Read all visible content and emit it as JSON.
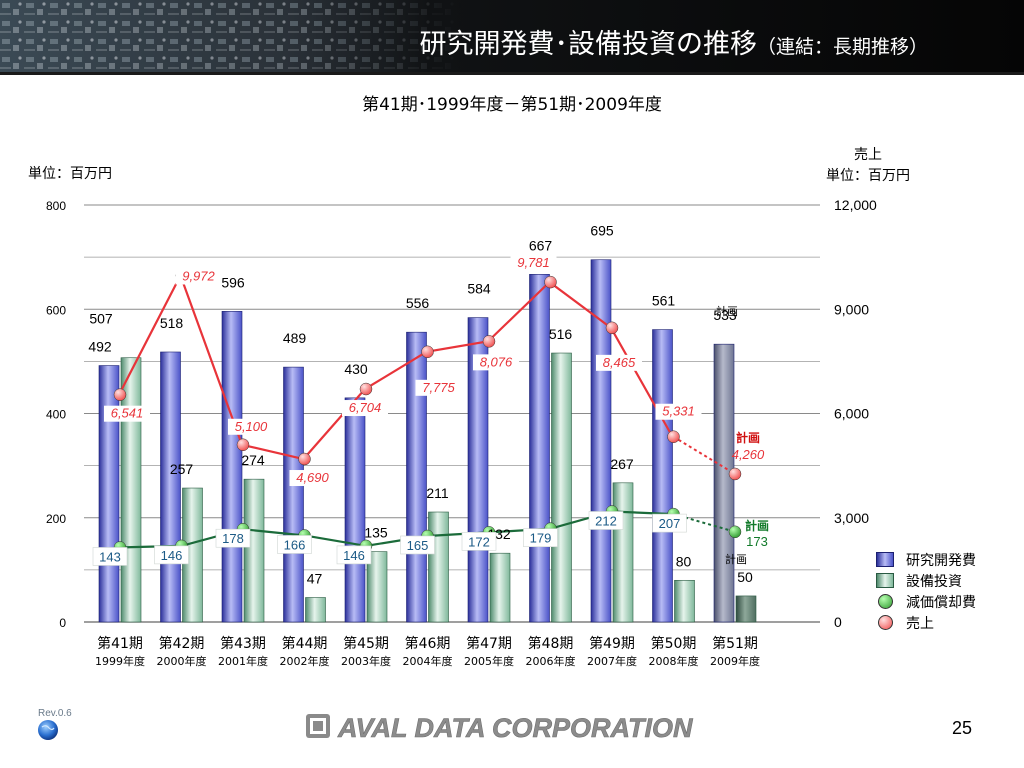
{
  "header": {
    "title_main": "研究開発費･設備投資の推移",
    "title_sub": "（連結：長期推移）"
  },
  "subtitle": "第41期･1999年度－第51期･2009年度",
  "colors": {
    "header_bg": "#0b0b0b",
    "rd_bar": "#4a52c8",
    "rd_bar_plan": "#6e7592",
    "capex_bar": "#7fb89b",
    "capex_bar_plan": "#4f6e60",
    "depreciation_line": "#1b6b3a",
    "depreciation_marker": "#2e9a2e",
    "sales_line": "#e8343a",
    "sales_marker": "#f04a4a",
    "plan_label": "#d01010",
    "depreciation_plan_label": "#127a2a"
  },
  "chart_data": {
    "type": "bar",
    "left_unit": "単位：百万円",
    "right_unit_line1": "売上",
    "right_unit_line2": "単位：百万円",
    "left_ylim": [
      0,
      800
    ],
    "left_ticks": [
      "0",
      "200",
      "400",
      "600",
      "800"
    ],
    "right_ylim": [
      0,
      12000
    ],
    "right_ticks": [
      "0",
      "3,000",
      "6,000",
      "9,000",
      "12,000"
    ],
    "grid": true,
    "categories": [
      "第41期",
      "第42期",
      "第43期",
      "第44期",
      "第45期",
      "第46期",
      "第47期",
      "第48期",
      "第49期",
      "第50期",
      "第51期"
    ],
    "category_years": [
      "1999年度",
      "2000年度",
      "2001年度",
      "2002年度",
      "2003年度",
      "2004年度",
      "2005年度",
      "2006年度",
      "2007年度",
      "2008年度",
      "2009年度"
    ],
    "plan_label": "計画",
    "series": [
      {
        "name": "研究開発費",
        "kind": "bar",
        "axis": "left",
        "values": [
          492,
          518,
          596,
          489,
          430,
          556,
          584,
          667,
          695,
          561,
          533
        ],
        "labels": [
          "492",
          "518",
          "596",
          "489",
          "430",
          "556",
          "584",
          "667",
          "695",
          "561",
          "533"
        ]
      },
      {
        "name": "設備投資",
        "kind": "bar",
        "axis": "left",
        "values": [
          507,
          257,
          274,
          47,
          135,
          211,
          132,
          516,
          267,
          80,
          50
        ],
        "labels": [
          "507",
          "257",
          "274",
          "47",
          "135",
          "211",
          "132",
          "516",
          "267",
          "80",
          "50"
        ]
      },
      {
        "name": "減価償却費",
        "kind": "line",
        "axis": "left",
        "values": [
          143,
          146,
          178,
          166,
          146,
          165,
          172,
          179,
          212,
          207,
          173
        ],
        "labels": [
          "143",
          "146",
          "178",
          "166",
          "146",
          "165",
          "172",
          "179",
          "212",
          "207",
          "173"
        ]
      },
      {
        "name": "売上",
        "kind": "line",
        "axis": "right",
        "values": [
          6541,
          9972,
          5100,
          4690,
          6704,
          7775,
          8076,
          9781,
          8465,
          5331,
          4260
        ],
        "labels": [
          "6,541",
          "9,972",
          "5,100",
          "4,690",
          "6,704",
          "7,775",
          "8,076",
          "9,781",
          "8,465",
          "5,331",
          "4,260"
        ]
      }
    ],
    "legend": "right"
  },
  "footer": {
    "revision": "Rev.0.6",
    "company": "AVAL DATA CORPORATION",
    "page_number": "25"
  }
}
